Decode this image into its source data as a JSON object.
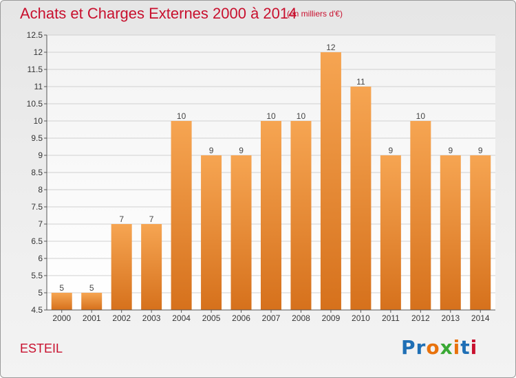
{
  "header": {
    "title": "Achats et Charges Externes 2000 à 2014",
    "unit": "(en milliers d'€)"
  },
  "footer": {
    "commune": "ESTEIL",
    "brand": "Proxiti",
    "brand_colors": [
      "#1f6fb5",
      "#1f6fb5",
      "#e8720c",
      "#3aa935",
      "#e8720c",
      "#1f6fb5",
      "#c8102e"
    ]
  },
  "colors": {
    "accent": "#c8102e",
    "bar_top": "#f6a552",
    "bar_bottom": "#d6711c",
    "grid": "#d0d0d0"
  },
  "chart_data": {
    "type": "bar",
    "categories": [
      "2000",
      "2001",
      "2002",
      "2003",
      "2004",
      "2005",
      "2006",
      "2007",
      "2008",
      "2009",
      "2010",
      "2011",
      "2012",
      "2013",
      "2014"
    ],
    "values": [
      5,
      5,
      7,
      7,
      10,
      9,
      9,
      10,
      10,
      12,
      11,
      9,
      10,
      9,
      9
    ],
    "value_labels": [
      "5",
      "5",
      "7",
      "7",
      "10",
      "9",
      "9",
      "10",
      "10",
      "12",
      "11",
      "9",
      "10",
      "9",
      "9"
    ],
    "ylim": [
      4.5,
      12.5
    ],
    "yticks": [
      4.5,
      5,
      5.5,
      6,
      6.5,
      7,
      7.5,
      8,
      8.5,
      9,
      9.5,
      10,
      10.5,
      11,
      11.5,
      12,
      12.5
    ],
    "ytick_labels": [
      "4.5",
      "5",
      "5.5",
      "6",
      "6.5",
      "7",
      "7.5",
      "8",
      "8.5",
      "9",
      "9.5",
      "10",
      "10.5",
      "11",
      "11.5",
      "12",
      "12.5"
    ],
    "grid": true
  }
}
